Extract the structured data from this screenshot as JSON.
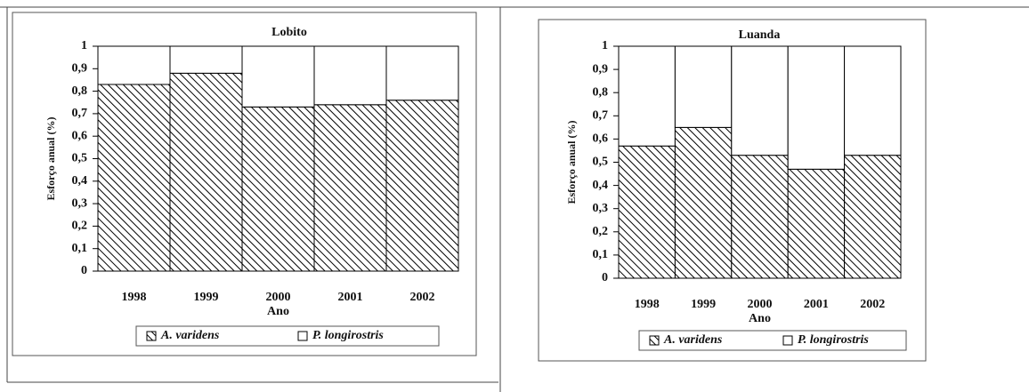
{
  "chart_data": [
    {
      "type": "stacked-bar",
      "title": "Lobito",
      "x_label": "Ano",
      "y_label": "Esforço anual (%)",
      "categories": [
        "1998",
        "1999",
        "2000",
        "2001",
        "2002"
      ],
      "series": [
        {
          "name": "A. varidens",
          "color": "#000000",
          "hatch": true,
          "values": [
            0.83,
            0.88,
            0.73,
            0.74,
            0.76
          ]
        },
        {
          "name": "P. longirostris",
          "color": "#ffffff",
          "hatch": false,
          "values": [
            0.17,
            0.12,
            0.27,
            0.26,
            0.24
          ]
        }
      ],
      "ylim": [
        0,
        1
      ],
      "yticks": [
        0,
        {
          "value": 0.1,
          "label": "0,1"
        },
        {
          "value": 0.2,
          "label": "0,2"
        },
        {
          "value": 0.3,
          "label": "0,3"
        },
        {
          "value": 0.4,
          "label": "0,4"
        },
        {
          "value": 0.5,
          "label": "0,5"
        },
        {
          "value": 0.6,
          "label": "0,6"
        },
        {
          "value": 0.7,
          "label": "0,7"
        },
        {
          "value": 0.8,
          "label": "0,8"
        },
        {
          "value": 0.9,
          "label": "0,9"
        },
        1
      ],
      "grid": false,
      "legend": "bottom"
    },
    {
      "type": "stacked-bar",
      "title": "Luanda",
      "x_label": "Ano",
      "y_label": "Esforço anual (%)",
      "categories": [
        "1998",
        "1999",
        "2000",
        "2001",
        "2002"
      ],
      "series": [
        {
          "name": "A. varidens",
          "color": "#000000",
          "hatch": true,
          "values": [
            0.57,
            0.65,
            0.53,
            0.47,
            0.53
          ]
        },
        {
          "name": "P. longirostris",
          "color": "#ffffff",
          "hatch": false,
          "values": [
            0.43,
            0.35,
            0.47,
            0.53,
            0.47
          ]
        }
      ],
      "ylim": [
        0,
        1
      ],
      "yticks": [
        0,
        {
          "value": 0.1,
          "label": "0,1"
        },
        {
          "value": 0.2,
          "label": "0,2"
        },
        {
          "value": 0.3,
          "label": "0,3"
        },
        {
          "value": 0.4,
          "label": "0,4"
        },
        {
          "value": 0.5,
          "label": "0,5"
        },
        {
          "value": 0.6,
          "label": "0,6"
        },
        {
          "value": 0.7,
          "label": "0,7"
        },
        {
          "value": 0.8,
          "label": "0,8"
        },
        {
          "value": 0.9,
          "label": "0,9"
        },
        1
      ],
      "grid": false,
      "legend": "bottom"
    }
  ]
}
